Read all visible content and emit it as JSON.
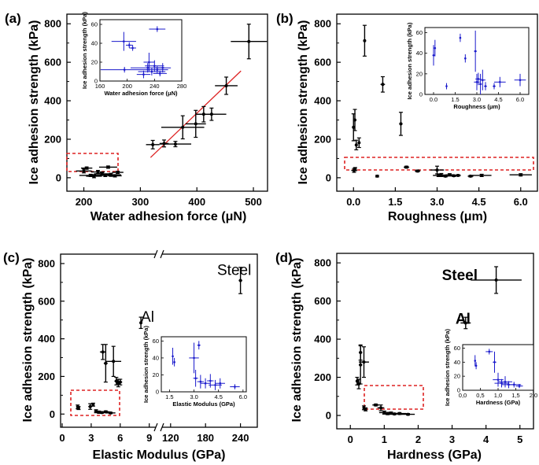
{
  "chart_data": [
    {
      "panel": "(a)",
      "type": "scatter",
      "xlabel": "Water adhesion force (μN)",
      "ylabel": "Ice adhesion strength (kPa)",
      "xlim": [
        170,
        525
      ],
      "ylim": [
        -70,
        850
      ],
      "xticks": [
        "200",
        "300",
        "400",
        "500"
      ],
      "yticks": [
        "0",
        "200",
        "400",
        "600",
        "800"
      ],
      "points": [
        {
          "x": 200,
          "y": 35,
          "xe": 14,
          "ye": 10
        },
        {
          "x": 205,
          "y": 50,
          "xe": 10,
          "ye": 6
        },
        {
          "x": 212,
          "y": 12,
          "xe": 20,
          "ye": 6
        },
        {
          "x": 218,
          "y": 8,
          "xe": 14,
          "ye": 8
        },
        {
          "x": 225,
          "y": 30,
          "xe": 12,
          "ye": 8
        },
        {
          "x": 232,
          "y": 20,
          "xe": 14,
          "ye": 6
        },
        {
          "x": 238,
          "y": 12,
          "xe": 20,
          "ye": 6
        },
        {
          "x": 243,
          "y": 55,
          "xe": 16,
          "ye": 6
        },
        {
          "x": 248,
          "y": 15,
          "xe": 18,
          "ye": 8
        },
        {
          "x": 255,
          "y": 10,
          "xe": 12,
          "ye": 6
        },
        {
          "x": 260,
          "y": 28,
          "xe": 10,
          "ye": 6
        },
        {
          "x": 322,
          "y": 172,
          "xe": 12,
          "ye": 22
        },
        {
          "x": 342,
          "y": 178,
          "xe": 8,
          "ye": 18
        },
        {
          "x": 362,
          "y": 175,
          "xe": 28,
          "ye": 14
        },
        {
          "x": 375,
          "y": 262,
          "xe": 38,
          "ye": 60
        },
        {
          "x": 398,
          "y": 280,
          "xe": 18,
          "ye": 70
        },
        {
          "x": 412,
          "y": 330,
          "xe": 14,
          "ye": 40
        },
        {
          "x": 426,
          "y": 330,
          "xe": 26,
          "ye": 32
        },
        {
          "x": 452,
          "y": 478,
          "xe": 20,
          "ye": 45
        },
        {
          "x": 492,
          "y": 708,
          "xe": 32,
          "ye": 90
        }
      ],
      "fit_line": {
        "x": [
          318,
          478
        ],
        "y": [
          105,
          555
        ]
      },
      "inset": {
        "xlabel": "Water adhesion force (μN)",
        "ylabel": "Ice adhesion strength (kPa)",
        "xlim": [
          160,
          280
        ],
        "ylim": [
          0,
          65
        ],
        "xticks": [
          "160",
          "200",
          "240",
          "280"
        ],
        "yticks": [
          "0",
          "20",
          "40",
          "60"
        ],
        "points": [
          {
            "x": 195,
            "y": 42,
            "xe": 18,
            "ye": 10
          },
          {
            "x": 203,
            "y": 38,
            "xe": 5,
            "ye": 3
          },
          {
            "x": 208,
            "y": 35,
            "xe": 5,
            "ye": 3
          },
          {
            "x": 244,
            "y": 55,
            "xe": 12,
            "ye": 3
          },
          {
            "x": 196,
            "y": 12,
            "xe": 35,
            "ye": 3
          },
          {
            "x": 230,
            "y": 14,
            "xe": 25,
            "ye": 5
          },
          {
            "x": 236,
            "y": 10,
            "xe": 20,
            "ye": 4
          },
          {
            "x": 240,
            "y": 16,
            "xe": 14,
            "ye": 6
          },
          {
            "x": 244,
            "y": 12,
            "xe": 16,
            "ye": 4
          },
          {
            "x": 248,
            "y": 8,
            "xe": 10,
            "ye": 3
          },
          {
            "x": 252,
            "y": 14,
            "xe": 12,
            "ye": 5
          },
          {
            "x": 232,
            "y": 20,
            "xe": 8,
            "ye": 10
          },
          {
            "x": 224,
            "y": 7,
            "xe": 10,
            "ye": 4
          }
        ]
      }
    },
    {
      "panel": "(b)",
      "type": "scatter",
      "xlabel": "Roughness (μm)",
      "ylabel": "Ice adhesion strength (kPa)",
      "xlim": [
        -0.6,
        6.6
      ],
      "ylim": [
        -70,
        850
      ],
      "xticks": [
        "0.0",
        "1.5",
        "3.0",
        "4.5",
        "6.0"
      ],
      "yticks": [
        "0",
        "200",
        "400",
        "600",
        "800"
      ],
      "points": [
        {
          "x": 0.0,
          "y": 262,
          "xe": 0.04,
          "ye": 70
        },
        {
          "x": 0.05,
          "y": 300,
          "xe": 0.04,
          "ye": 55
        },
        {
          "x": 0.1,
          "y": 170,
          "xe": 0.04,
          "ye": 25
        },
        {
          "x": 0.2,
          "y": 182,
          "xe": 0.04,
          "ye": 25
        },
        {
          "x": 0.4,
          "y": 712,
          "xe": 0.04,
          "ye": 80
        },
        {
          "x": 1.05,
          "y": 485,
          "xe": 0.08,
          "ye": 40
        },
        {
          "x": 1.7,
          "y": 280,
          "xe": 0.06,
          "ye": 60
        },
        {
          "x": 0.02,
          "y": 38,
          "xe": 0.1,
          "ye": 10
        },
        {
          "x": 0.06,
          "y": 45,
          "xe": 0.05,
          "ye": 8
        },
        {
          "x": 0.85,
          "y": 8,
          "xe": 0.05,
          "ye": 4
        },
        {
          "x": 1.9,
          "y": 55,
          "xe": 0.1,
          "ye": 5
        },
        {
          "x": 2.3,
          "y": 35,
          "xe": 0.1,
          "ye": 5
        },
        {
          "x": 3.0,
          "y": 40,
          "xe": 0.25,
          "ye": 20
        },
        {
          "x": 3.05,
          "y": 12,
          "xe": 0.2,
          "ye": 6
        },
        {
          "x": 3.15,
          "y": 14,
          "xe": 0.15,
          "ye": 8
        },
        {
          "x": 3.3,
          "y": 8,
          "xe": 0.1,
          "ye": 4
        },
        {
          "x": 3.45,
          "y": 15,
          "xe": 0.15,
          "ye": 6
        },
        {
          "x": 3.6,
          "y": 10,
          "xe": 0.15,
          "ye": 4
        },
        {
          "x": 3.75,
          "y": 12,
          "xe": 0.1,
          "ye": 4
        },
        {
          "x": 4.2,
          "y": 8,
          "xe": 0.1,
          "ye": 4
        },
        {
          "x": 4.6,
          "y": 12,
          "xe": 0.35,
          "ye": 6
        },
        {
          "x": 6.0,
          "y": 15,
          "xe": 0.4,
          "ye": 6
        }
      ],
      "inset": {
        "xlabel": "Roughness (μm)",
        "ylabel": "Ice adhesion strength (kPa)",
        "xlim": [
          -0.6,
          6.6
        ],
        "ylim": [
          0,
          65
        ],
        "xticks": [
          "0.0",
          "1.5",
          "3.0",
          "4.5",
          "6.0"
        ],
        "yticks": [
          "0",
          "20",
          "40",
          "60"
        ],
        "points": [
          {
            "x": 0.0,
            "y": 38,
            "xe": 0.08,
            "ye": 10
          },
          {
            "x": 0.1,
            "y": 45,
            "xe": 0.05,
            "ye": 8
          },
          {
            "x": 0.9,
            "y": 8,
            "xe": 0.05,
            "ye": 3
          },
          {
            "x": 1.85,
            "y": 55,
            "xe": 0.05,
            "ye": 4
          },
          {
            "x": 2.2,
            "y": 35,
            "xe": 0.05,
            "ye": 4
          },
          {
            "x": 2.9,
            "y": 42,
            "xe": 0.1,
            "ye": 20
          },
          {
            "x": 3.0,
            "y": 12,
            "xe": 0.2,
            "ye": 8
          },
          {
            "x": 3.1,
            "y": 15,
            "xe": 0.2,
            "ye": 6
          },
          {
            "x": 3.25,
            "y": 10,
            "xe": 0.1,
            "ye": 10
          },
          {
            "x": 3.4,
            "y": 14,
            "xe": 0.2,
            "ye": 10
          },
          {
            "x": 3.6,
            "y": 8,
            "xe": 0.1,
            "ye": 4
          },
          {
            "x": 4.2,
            "y": 8,
            "xe": 0.1,
            "ye": 3
          },
          {
            "x": 4.6,
            "y": 12,
            "xe": 0.4,
            "ye": 5
          },
          {
            "x": 6.0,
            "y": 14,
            "xe": 0.4,
            "ye": 6
          }
        ]
      }
    },
    {
      "panel": "(c)",
      "type": "scatter",
      "xlabel": "Elastic Modulus (GPa)",
      "ylabel": "Ice adhesion strength (kPa)",
      "xlim": [
        0,
        250
      ],
      "ylim": [
        -70,
        850
      ],
      "axis_break": "between 10 and 40 GPa",
      "xticks": [
        "0",
        "3",
        "6",
        "9",
        "120",
        "180",
        "240"
      ],
      "yticks": [
        "0",
        "200",
        "400",
        "600",
        "800"
      ],
      "labels": [
        {
          "text": "Steel",
          "x": 200,
          "y": 740
        },
        {
          "text": "Al",
          "x": 69,
          "y": 490
        }
      ],
      "points": [
        {
          "x": 1.6,
          "y": 38,
          "xe": 0.1,
          "ye": 10
        },
        {
          "x": 1.7,
          "y": 32,
          "xe": 0.1,
          "ye": 8
        },
        {
          "x": 2.9,
          "y": 40,
          "xe": 0.2,
          "ye": 15
        },
        {
          "x": 3.2,
          "y": 50,
          "xe": 0.1,
          "ye": 8
        },
        {
          "x": 3.5,
          "y": 15,
          "xe": 0.2,
          "ye": 8
        },
        {
          "x": 3.8,
          "y": 10,
          "xe": 0.3,
          "ye": 6
        },
        {
          "x": 4.1,
          "y": 8,
          "xe": 0.3,
          "ye": 4
        },
        {
          "x": 4.5,
          "y": 12,
          "xe": 0.4,
          "ye": 5
        },
        {
          "x": 5.0,
          "y": 6,
          "xe": 0.5,
          "ye": 4
        },
        {
          "x": 4.2,
          "y": 330,
          "xe": 0.3,
          "ye": 40
        },
        {
          "x": 4.5,
          "y": 270,
          "xe": 0.2,
          "ye": 100
        },
        {
          "x": 5.3,
          "y": 280,
          "xe": 0.8,
          "ye": 80
        },
        {
          "x": 5.6,
          "y": 175,
          "xe": 0.2,
          "ye": 20
        },
        {
          "x": 5.8,
          "y": 165,
          "xe": 0.2,
          "ye": 20
        },
        {
          "x": 6.0,
          "y": 170,
          "xe": 0.2,
          "ye": 15
        },
        {
          "x": 69,
          "y": 485,
          "xe": 1,
          "ye": 30
        },
        {
          "x": 240,
          "y": 710,
          "xe": 3,
          "ye": 70
        }
      ],
      "inset": {
        "xlabel": "Elastic Modulus (GPa)",
        "ylabel": "Ice adhesion strength (kPa)",
        "xlim": [
          1.0,
          6.2
        ],
        "ylim": [
          0,
          65
        ],
        "xticks": [
          "1.5",
          "3.0",
          "4.5",
          "6.0"
        ],
        "yticks": [
          "0",
          "20",
          "40",
          "60"
        ],
        "points": [
          {
            "x": 1.7,
            "y": 42,
            "xe": 0.05,
            "ye": 10
          },
          {
            "x": 1.8,
            "y": 35,
            "xe": 0.05,
            "ye": 5
          },
          {
            "x": 3.0,
            "y": 40,
            "xe": 0.3,
            "ye": 18
          },
          {
            "x": 3.3,
            "y": 55,
            "xe": 0.1,
            "ye": 5
          },
          {
            "x": 3.1,
            "y": 16,
            "xe": 0.15,
            "ye": 10
          },
          {
            "x": 3.4,
            "y": 12,
            "xe": 0.2,
            "ye": 8
          },
          {
            "x": 3.7,
            "y": 10,
            "xe": 0.3,
            "ye": 6
          },
          {
            "x": 4.0,
            "y": 13,
            "xe": 0.2,
            "ye": 8
          },
          {
            "x": 4.3,
            "y": 8,
            "xe": 0.4,
            "ye": 6
          },
          {
            "x": 4.6,
            "y": 10,
            "xe": 0.3,
            "ye": 6
          },
          {
            "x": 5.5,
            "y": 6,
            "xe": 0.3,
            "ye": 3
          }
        ]
      }
    },
    {
      "panel": "(d)",
      "type": "scatter",
      "xlabel": "Hardness (GPa)",
      "ylabel": "Ice adhesion strength (kPa)",
      "xlim": [
        -0.4,
        5.4
      ],
      "ylim": [
        -70,
        850
      ],
      "xticks": [
        "0",
        "1",
        "2",
        "3",
        "4",
        "5"
      ],
      "yticks": [
        "0",
        "200",
        "400",
        "600",
        "800"
      ],
      "labels": [
        {
          "text": "Steel",
          "x": 2.7,
          "y": 710
        },
        {
          "text": "Al",
          "x": 3.1,
          "y": 480
        }
      ],
      "points": [
        {
          "x": 0.2,
          "y": 180,
          "xe": 0.04,
          "ye": 20
        },
        {
          "x": 0.25,
          "y": 165,
          "xe": 0.04,
          "ye": 25
        },
        {
          "x": 0.3,
          "y": 330,
          "xe": 0.05,
          "ye": 40
        },
        {
          "x": 0.3,
          "y": 265,
          "xe": 0.05,
          "ye": 100
        },
        {
          "x": 0.4,
          "y": 280,
          "xe": 0.15,
          "ye": 80
        },
        {
          "x": 0.4,
          "y": 40,
          "xe": 0.03,
          "ye": 10
        },
        {
          "x": 0.45,
          "y": 32,
          "xe": 0.03,
          "ye": 8
        },
        {
          "x": 0.75,
          "y": 55,
          "xe": 0.1,
          "ye": 5
        },
        {
          "x": 0.9,
          "y": 40,
          "xe": 0.1,
          "ye": 15
        },
        {
          "x": 1.0,
          "y": 15,
          "xe": 0.15,
          "ye": 8
        },
        {
          "x": 1.1,
          "y": 10,
          "xe": 0.15,
          "ye": 6
        },
        {
          "x": 1.2,
          "y": 12,
          "xe": 0.15,
          "ye": 6
        },
        {
          "x": 1.3,
          "y": 8,
          "xe": 0.15,
          "ye": 4
        },
        {
          "x": 1.45,
          "y": 10,
          "xe": 0.2,
          "ye": 5
        },
        {
          "x": 1.7,
          "y": 6,
          "xe": 0.2,
          "ye": 4
        },
        {
          "x": 3.4,
          "y": 485,
          "xe": 0.15,
          "ye": 30
        },
        {
          "x": 4.3,
          "y": 710,
          "xe": 0.75,
          "ye": 70
        }
      ],
      "inset": {
        "xlabel": "Hardness (GPa)",
        "ylabel": "Ice adhesion strength (kPa)",
        "xlim": [
          0,
          2
        ],
        "ylim": [
          0,
          65
        ],
        "xticks": [
          "0,0",
          "0,5",
          "1,0",
          "1,5",
          "2,0"
        ],
        "yticks": [
          "0",
          "20",
          "40",
          "60"
        ],
        "points": [
          {
            "x": 0.35,
            "y": 42,
            "xe": 0.02,
            "ye": 8
          },
          {
            "x": 0.38,
            "y": 35,
            "xe": 0.02,
            "ye": 5
          },
          {
            "x": 0.75,
            "y": 55,
            "xe": 0.1,
            "ye": 4
          },
          {
            "x": 0.9,
            "y": 40,
            "xe": 0.05,
            "ye": 15
          },
          {
            "x": 1.0,
            "y": 15,
            "xe": 0.15,
            "ye": 10
          },
          {
            "x": 1.1,
            "y": 10,
            "xe": 0.2,
            "ye": 6
          },
          {
            "x": 1.2,
            "y": 12,
            "xe": 0.2,
            "ye": 8
          },
          {
            "x": 1.3,
            "y": 8,
            "xe": 0.2,
            "ye": 5
          },
          {
            "x": 1.45,
            "y": 8,
            "xe": 0.2,
            "ye": 4
          },
          {
            "x": 1.6,
            "y": 6,
            "xe": 0.1,
            "ye": 3
          }
        ]
      }
    }
  ],
  "colors": {
    "main": "#000000",
    "inset": "#1a1acc",
    "fit": "#dd2222",
    "box": "#dd2222"
  }
}
